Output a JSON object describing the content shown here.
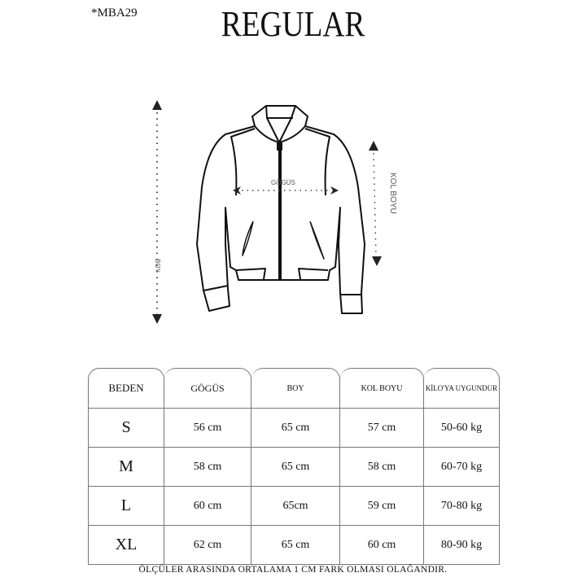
{
  "header": {
    "code": "*MBA29",
    "title": "REGULAR"
  },
  "diagram": {
    "labels": {
      "boy": "BOY",
      "gogus": "GÖGÜS",
      "kol_boyu": "KOL BOYU"
    }
  },
  "table": {
    "headers": [
      "BEDEN",
      "GÖGÜS",
      "BOY",
      "KOL BOYU",
      "KİLO'YA UYGUNDUR"
    ],
    "rows": [
      [
        "S",
        "56 cm",
        "65 cm",
        "57  cm",
        "50-60 kg"
      ],
      [
        "M",
        "58 cm",
        "65 cm",
        "58 cm",
        "60-70 kg"
      ],
      [
        "L",
        "60 cm",
        "65cm",
        "59 cm",
        "70-80 kg"
      ],
      [
        "XL",
        "62 cm",
        "65 cm",
        "60 cm",
        "80-90 kg"
      ]
    ]
  },
  "footer": {
    "note": "ÖLÇÜLER ARASINDA ORTALAMA 1 CM FARK OLMASI OLAĞANDIR."
  }
}
